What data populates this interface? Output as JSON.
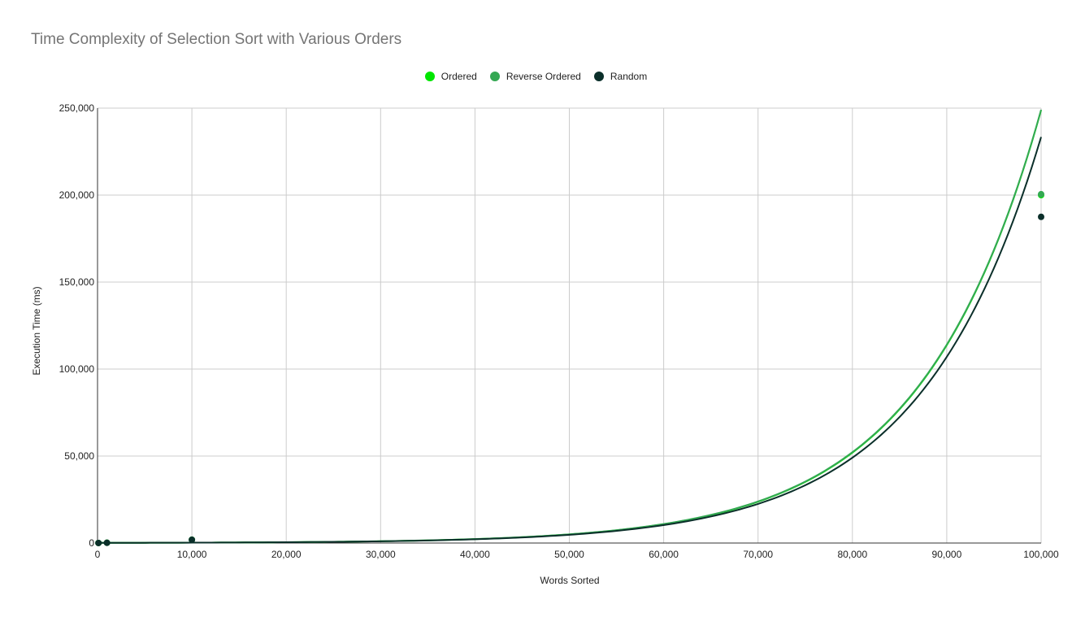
{
  "chart_data": {
    "type": "scatter",
    "title": "Time Complexity of Selection Sort with Various Orders",
    "xlabel": "Words Sorted",
    "ylabel": "Execution Time (ms)",
    "xlim": [
      0,
      100000
    ],
    "ylim": [
      0,
      250000
    ],
    "x_ticks": [
      0,
      10000,
      20000,
      30000,
      40000,
      50000,
      60000,
      70000,
      80000,
      90000,
      100000
    ],
    "x_tick_labels": [
      "0",
      "10,000",
      "20,000",
      "30,000",
      "40,000",
      "50,000",
      "60,000",
      "70,000",
      "80,000",
      "90,000",
      "100,000"
    ],
    "y_ticks": [
      0,
      50000,
      100000,
      150000,
      200000,
      250000
    ],
    "y_tick_labels": [
      "0",
      "50,000",
      "100,000",
      "150,000",
      "200,000",
      "250,000"
    ],
    "grid": true,
    "legend_position": "top",
    "trendline": "exponential",
    "series": [
      {
        "name": "Ordered",
        "color": "#00e600",
        "x": [
          100,
          1000,
          10000,
          100000
        ],
        "y": [
          10,
          150,
          1900,
          200000
        ]
      },
      {
        "name": "Reverse Ordered",
        "color": "#34a853",
        "x": [
          100,
          1000,
          10000,
          100000
        ],
        "y": [
          10,
          160,
          1900,
          200500
        ]
      },
      {
        "name": "Random",
        "color": "#0b2f2a",
        "x": [
          100,
          1000,
          10000,
          100000
        ],
        "y": [
          10,
          140,
          1850,
          187500
        ]
      }
    ]
  }
}
